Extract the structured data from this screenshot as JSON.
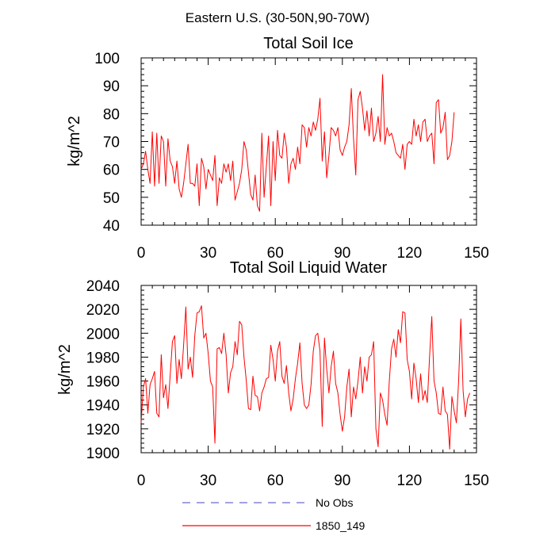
{
  "figure": {
    "suptitle": "Eastern U.S. (30-50N,90-70W)"
  },
  "legend": {
    "entries": [
      {
        "label": "No Obs",
        "color": "#6a6ad0",
        "style": "dashed"
      },
      {
        "label": "1850_149",
        "color": "#ff0000",
        "style": "solid"
      }
    ]
  },
  "chart_data": [
    {
      "type": "line",
      "title": "Total Soil Ice",
      "xlabel": "",
      "ylabel": "kg/m^2",
      "xlim": [
        0,
        150
      ],
      "ylim": [
        40,
        100
      ],
      "xticks": [
        0,
        30,
        60,
        90,
        120,
        150
      ],
      "yticks": [
        40,
        50,
        60,
        70,
        80,
        90,
        100
      ],
      "grid": false,
      "series": [
        {
          "name": "1850_149",
          "color": "#ff0000",
          "x_start": 0,
          "x_step": 1,
          "values": [
            60,
            62,
            66.5,
            60,
            55,
            73.5,
            54,
            73,
            55,
            72,
            70,
            54,
            71,
            63,
            61,
            55,
            63,
            53,
            50,
            55,
            62,
            69,
            55,
            55,
            54,
            62,
            47,
            64,
            61,
            53,
            60,
            58,
            56,
            65,
            47,
            57,
            55,
            62,
            59,
            62,
            56,
            63,
            49,
            52,
            55,
            60,
            70,
            67,
            59,
            51,
            49,
            58,
            47,
            45,
            73,
            50,
            61,
            72,
            47,
            70,
            56,
            74,
            65,
            64,
            73,
            68,
            55,
            62,
            64,
            60,
            68,
            62,
            76,
            75,
            68,
            75,
            72,
            77,
            74,
            78,
            85.5,
            63,
            73.5,
            57,
            65,
            75,
            74,
            72,
            75,
            67,
            65,
            68,
            70,
            76,
            89,
            71,
            58,
            85,
            88,
            82,
            74,
            81,
            72,
            82,
            70,
            73,
            79,
            70,
            94,
            69,
            75,
            72,
            73,
            70,
            66,
            65,
            64,
            69,
            60,
            69,
            70,
            69,
            78,
            72,
            76,
            70,
            77,
            78,
            70,
            72,
            73,
            62,
            84,
            85,
            73,
            75,
            80.5,
            63.5,
            65,
            70,
            80.5
          ]
        }
      ]
    },
    {
      "type": "line",
      "title": "Total Soil Liquid Water",
      "xlabel": "",
      "ylabel": "kg/m^2",
      "xlim": [
        0,
        150
      ],
      "ylim": [
        1900,
        2040
      ],
      "xticks": [
        0,
        30,
        60,
        90,
        120,
        150
      ],
      "yticks": [
        1900,
        1920,
        1940,
        1960,
        1980,
        2000,
        2020,
        2040
      ],
      "grid": false,
      "series": [
        {
          "name": "1850_149",
          "color": "#ff0000",
          "x_start": 0,
          "x_step": 1,
          "values": [
            1925,
            1955,
            1962,
            1933,
            1957,
            1962,
            1968,
            1933,
            1930,
            1982,
            1946,
            1957,
            1937,
            1965,
            1993,
            1998,
            1958,
            1978,
            1962,
            1990,
            2022,
            1970,
            1980,
            1963,
            1998,
            2017,
            2018,
            2023,
            1996,
            2000,
            1983,
            1960,
            1955,
            1908,
            1987,
            1988,
            1983,
            2000,
            1982,
            1950,
            1967,
            1972,
            1993,
            1982,
            2010,
            2007,
            1980,
            1961,
            1937,
            1936,
            1964,
            1948,
            1947,
            1935,
            1950,
            1955,
            1962,
            1963,
            1990,
            1978,
            1960,
            1985,
            1993,
            1964,
            1958,
            1973,
            1950,
            1935,
            1945,
            1962,
            1975,
            1992,
            1958,
            1940,
            1937,
            1940,
            1957,
            1985,
            1998,
            2000,
            1985,
            1922,
            1996,
            1970,
            1950,
            1972,
            1985,
            1958,
            1950,
            1932,
            1918,
            1930,
            1955,
            1970,
            1930,
            1955,
            1945,
            1960,
            1980,
            1950,
            1972,
            1960,
            1980,
            1982,
            1993,
            1920,
            1905,
            1950,
            1944,
            1932,
            1923,
            1960,
            1987,
            1995,
            1980,
            2003,
            1992,
            2018,
            2017,
            1978,
            1968,
            1945,
            1975,
            1962,
            1942,
            1966,
            1944,
            1952,
            1942,
            1980,
            2014,
            1960,
            1950,
            1933,
            1932,
            1955,
            1935,
            1932,
            1903,
            1947,
            1935,
            1925,
            1960,
            2012,
            1952,
            1930,
            1945,
            1950
          ]
        }
      ]
    }
  ]
}
